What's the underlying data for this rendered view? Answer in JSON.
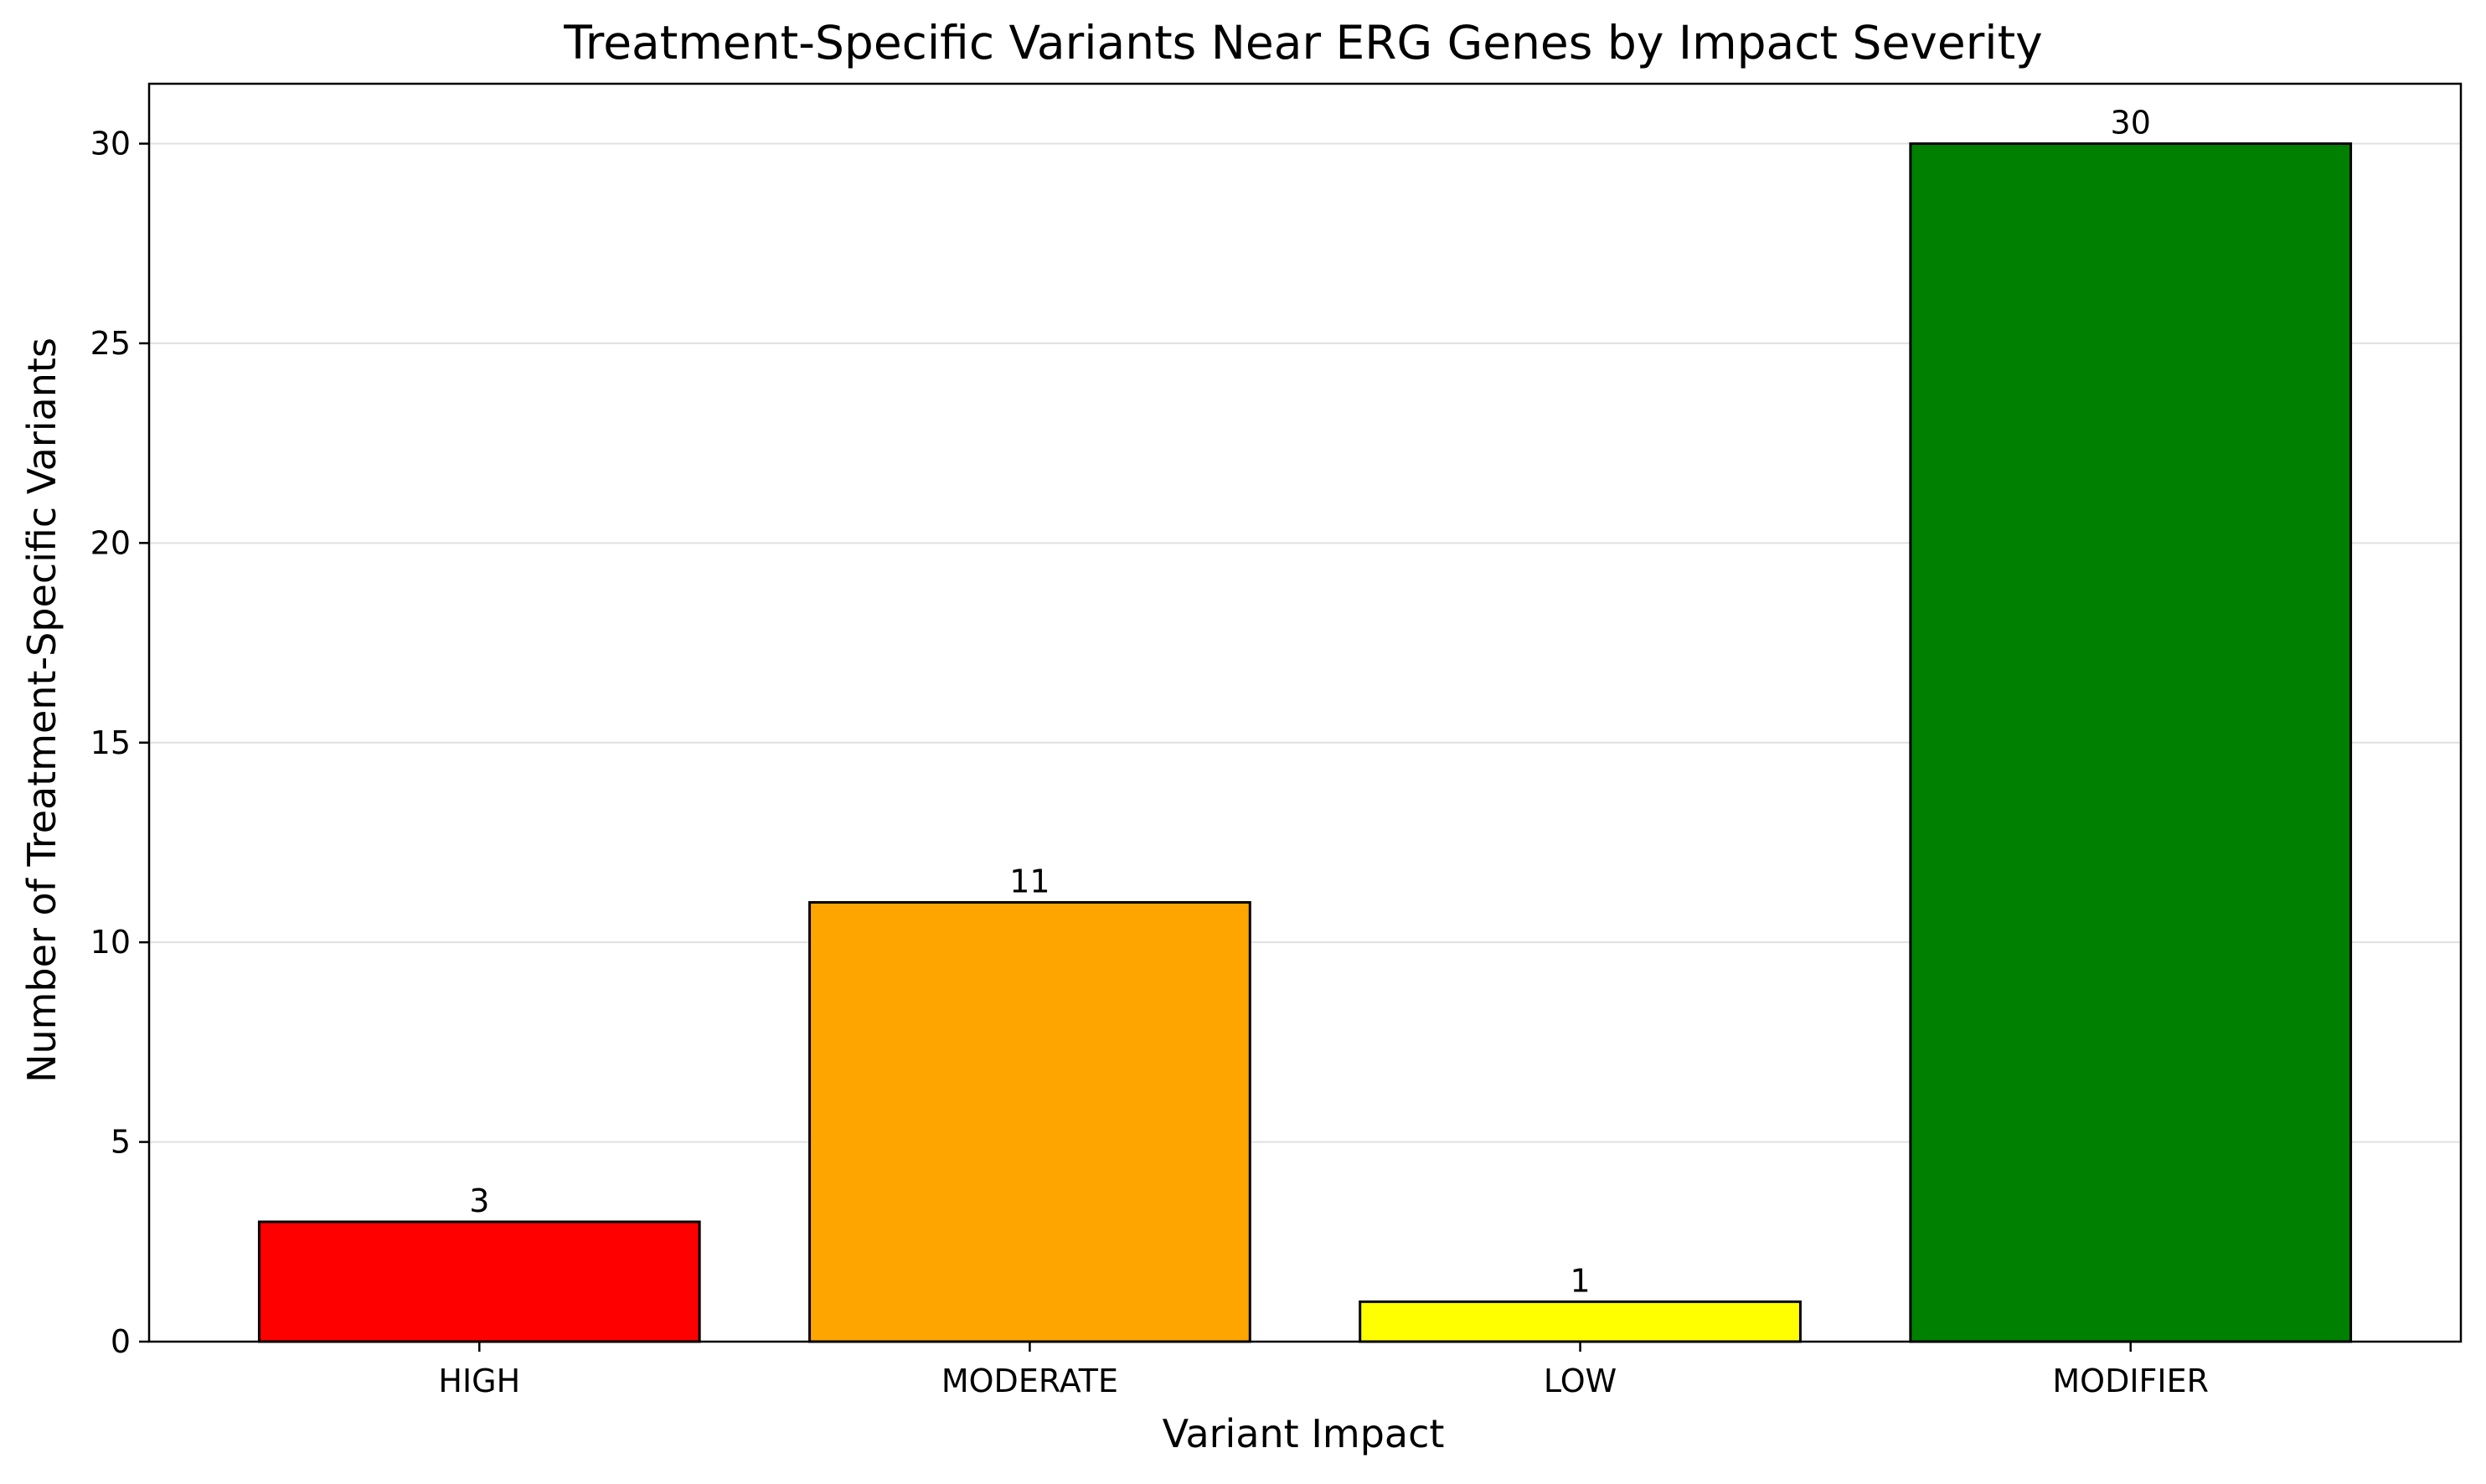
{
  "chart_data": {
    "type": "bar",
    "title": "Treatment-Specific Variants Near ERG Genes by Impact Severity",
    "xlabel": "Variant Impact",
    "ylabel": "Number of Treatment-Specific Variants",
    "categories": [
      "HIGH",
      "MODERATE",
      "LOW",
      "MODIFIER"
    ],
    "values": [
      3,
      11,
      1,
      30
    ],
    "data_labels": [
      "3",
      "11",
      "1",
      "30"
    ],
    "colors": [
      "#ff0000",
      "#ffa500",
      "#ffff00",
      "#008000"
    ],
    "edge_color": "#000000",
    "ylim": [
      0,
      31.5
    ],
    "yticks": [
      0,
      5,
      10,
      15,
      20,
      25,
      30
    ],
    "ytick_labels": [
      "0",
      "5",
      "10",
      "15",
      "20",
      "25",
      "30"
    ],
    "grid": "horizontal",
    "grid_color": "#e0e0e0",
    "legend": "none"
  }
}
